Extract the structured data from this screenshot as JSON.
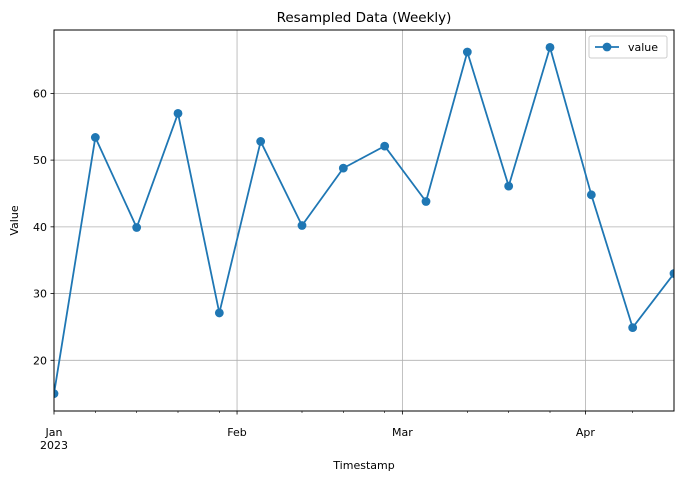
{
  "chart_data": {
    "type": "line",
    "title": "Resampled Data (Weekly)",
    "xlabel": "Timestamp",
    "ylabel": "Value",
    "x": [
      "2023-01-01",
      "2023-01-08",
      "2023-01-15",
      "2023-01-22",
      "2023-01-29",
      "2023-02-05",
      "2023-02-12",
      "2023-02-19",
      "2023-02-26",
      "2023-03-05",
      "2023-03-12",
      "2023-03-19",
      "2023-03-26",
      "2023-04-02",
      "2023-04-09",
      "2023-04-16"
    ],
    "series": [
      {
        "name": "value",
        "values": [
          15.0,
          53.4,
          39.9,
          57.0,
          27.1,
          52.8,
          40.2,
          48.8,
          52.1,
          43.8,
          66.2,
          46.1,
          66.9,
          44.8,
          24.9,
          33.0
        ]
      }
    ],
    "xlim": [
      "2023-01-01",
      "2023-04-16"
    ],
    "ylim": [
      12.4,
      69.5
    ],
    "yticks": [
      20,
      30,
      40,
      50,
      60
    ],
    "xticks": [
      {
        "date": "2023-01-01",
        "label": "Jan",
        "sublabel": "2023"
      },
      {
        "date": "2023-02-01",
        "label": "Feb",
        "sublabel": ""
      },
      {
        "date": "2023-03-01",
        "label": "Mar",
        "sublabel": ""
      },
      {
        "date": "2023-04-01",
        "label": "Apr",
        "sublabel": ""
      }
    ],
    "minor_xticks": [
      "2023-01-08",
      "2023-01-15",
      "2023-01-22",
      "2023-01-29",
      "2023-02-12",
      "2023-02-19",
      "2023-02-26",
      "2023-03-12",
      "2023-03-19",
      "2023-03-26",
      "2023-04-09"
    ],
    "grid": true,
    "legend_position": "top-right",
    "line_color": "#1f77b4"
  }
}
